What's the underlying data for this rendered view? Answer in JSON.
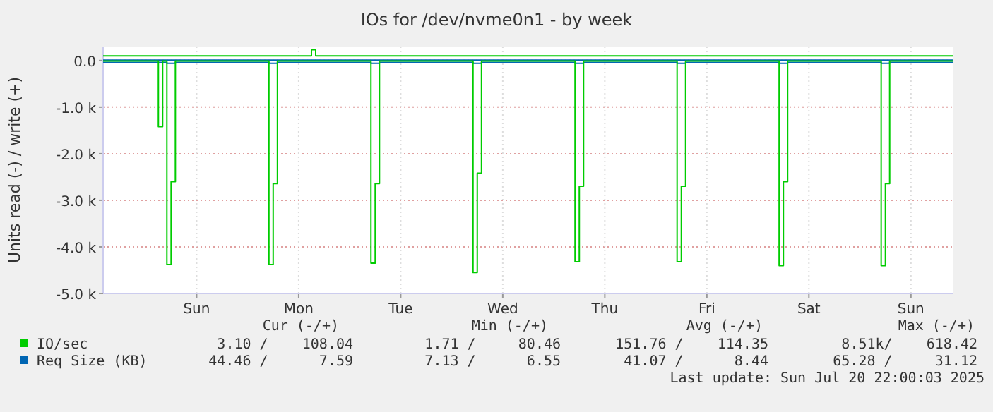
{
  "chart_data": {
    "type": "step",
    "title": "IOs for /dev/nvme0n1 - by week",
    "ylabel": "Units read (-) / write (+)",
    "categories": [
      null,
      null,
      null,
      null,
      null,
      null,
      null,
      null,
      null,
      null,
      null,
      null,
      null,
      null,
      null,
      null,
      null,
      null,
      null,
      null,
      null,
      null,
      "Sun",
      null,
      null,
      null,
      null,
      null,
      null,
      null,
      null,
      null,
      null,
      null,
      null,
      null,
      null,
      null,
      null,
      null,
      null,
      null,
      null,
      null,
      null,
      null,
      "Mon",
      null,
      null,
      null,
      null,
      null,
      null,
      null,
      null,
      null,
      null,
      null,
      null,
      null,
      null,
      null,
      null,
      null,
      null,
      null,
      null,
      null,
      null,
      null,
      "Tue",
      null,
      null,
      null,
      null,
      null,
      null,
      null,
      null,
      null,
      null,
      null,
      null,
      null,
      null,
      null,
      null,
      null,
      null,
      null,
      null,
      null,
      null,
      null,
      "Wed",
      null,
      null,
      null,
      null,
      null,
      null,
      null,
      null,
      null,
      null,
      null,
      null,
      null,
      null,
      null,
      null,
      null,
      null,
      null,
      null,
      null,
      null,
      null,
      "Thu",
      null,
      null,
      null,
      null,
      null,
      null,
      null,
      null,
      null,
      null,
      null,
      null,
      null,
      null,
      null,
      null,
      null,
      null,
      null,
      null,
      null,
      null,
      null,
      "Fri",
      null,
      null,
      null,
      null,
      null,
      null,
      null,
      null,
      null,
      null,
      null,
      null,
      null,
      null,
      null,
      null,
      null,
      null,
      null,
      null,
      null,
      null,
      null,
      "Sat",
      null,
      null,
      null,
      null,
      null,
      null,
      null,
      null,
      null,
      null,
      null,
      null,
      null,
      null,
      null,
      null,
      null,
      null,
      null,
      null,
      null,
      null,
      null,
      "Sun",
      null,
      null,
      null,
      null,
      null,
      null,
      null,
      null,
      null,
      null
    ],
    "ylim": [
      -5000,
      300
    ],
    "yticks": [
      {
        "value": -5000,
        "label": "-5.0 k"
      },
      {
        "value": -4000,
        "label": "-4.0 k"
      },
      {
        "value": -3000,
        "label": "-3.0 k"
      },
      {
        "value": -2000,
        "label": "-2.0 k"
      },
      {
        "value": -1000,
        "label": "-1.0 k"
      },
      {
        "value": 0,
        "label": "0.0"
      }
    ],
    "grid": true,
    "legend": "bottom",
    "series": [
      {
        "name": "IO/sec",
        "color": "#00cc00",
        "values": [
          -10,
          -10,
          -10,
          -10,
          -10,
          -10,
          -10,
          -10,
          -10,
          -10,
          -10,
          -10,
          -10,
          -1420,
          -10,
          -4380,
          -2600,
          -10,
          -10,
          -10,
          -10,
          -10,
          -10,
          -10,
          -10,
          -10,
          -10,
          -10,
          -10,
          -10,
          -10,
          -10,
          -10,
          -10,
          -10,
          -10,
          -10,
          -10,
          -10,
          -4380,
          -2640,
          -10,
          -10,
          -10,
          -10,
          -10,
          -10,
          -10,
          -10,
          -10,
          -10,
          -10,
          -10,
          -10,
          -10,
          -10,
          -10,
          -10,
          -10,
          -10,
          -10,
          -10,
          -10,
          -4350,
          -2640,
          -10,
          -10,
          -10,
          -10,
          -10,
          -10,
          -10,
          -10,
          -10,
          -10,
          -10,
          -10,
          -10,
          -10,
          -10,
          -10,
          -10,
          -10,
          -10,
          -10,
          -10,
          -10,
          -4550,
          -2420,
          -10,
          -10,
          -10,
          -10,
          -10,
          -10,
          -10,
          -10,
          -10,
          -10,
          -10,
          -10,
          -10,
          -10,
          -10,
          -10,
          -10,
          -10,
          -10,
          -10,
          -10,
          -10,
          -4320,
          -2700,
          -10,
          -10,
          -10,
          -10,
          -10,
          -10,
          -10,
          -10,
          -10,
          -10,
          -10,
          -10,
          -10,
          -10,
          -10,
          -10,
          -10,
          -10,
          -10,
          -10,
          -10,
          -10,
          -4320,
          -2700,
          -10,
          -10,
          -10,
          -10,
          -10,
          -10,
          -10,
          -10,
          -10,
          -10,
          -10,
          -10,
          -10,
          -10,
          -10,
          -10,
          -10,
          -10,
          -10,
          -10,
          -10,
          -10,
          -4400,
          -2600,
          -10,
          -10,
          -10,
          -10,
          -10,
          -10,
          -10,
          -10,
          -10,
          -10,
          -10,
          -10,
          -10,
          -10,
          -10,
          -10,
          -10,
          -10,
          -10,
          -10,
          -10,
          -10,
          -4400,
          -2640,
          -10,
          -10,
          -10,
          -10,
          -10,
          -10,
          -10,
          -10,
          -10,
          -10,
          -10,
          -10,
          -10,
          -10,
          -10,
          -10
        ]
      },
      {
        "color": "#00cc00",
        "values": [
          100,
          100,
          100,
          100,
          100,
          100,
          100,
          100,
          100,
          100,
          100,
          100,
          100,
          100,
          100,
          100,
          100,
          100,
          100,
          100,
          100,
          100,
          100,
          100,
          100,
          100,
          100,
          100,
          100,
          100,
          100,
          100,
          100,
          100,
          100,
          100,
          100,
          100,
          100,
          100,
          100,
          100,
          100,
          100,
          100,
          100,
          100,
          100,
          100,
          230,
          100,
          100,
          100,
          100,
          100,
          100,
          100,
          100,
          100,
          100,
          100,
          100,
          100,
          100,
          100,
          100,
          100,
          100,
          100,
          100,
          100,
          100,
          100,
          100,
          100,
          100,
          100,
          100,
          100,
          100,
          100,
          100,
          100,
          100,
          100,
          100,
          100,
          100,
          100,
          100,
          100,
          100,
          100,
          100,
          100,
          100,
          100,
          100,
          100,
          100,
          100,
          100,
          100,
          100,
          100,
          100,
          100,
          100,
          100,
          100,
          100,
          100,
          100,
          100,
          100,
          100,
          100,
          100,
          100,
          100,
          100,
          100,
          100,
          100,
          100,
          100,
          100,
          100,
          100,
          100,
          100,
          100,
          100,
          100,
          100,
          100,
          100,
          100,
          100,
          100,
          100,
          100,
          100,
          100,
          100,
          100,
          100,
          100,
          100,
          100,
          100,
          100,
          100,
          100,
          100,
          100,
          100,
          100,
          100,
          100,
          100,
          100,
          100,
          100,
          100,
          100,
          100,
          100,
          100,
          100,
          100,
          100,
          100,
          100,
          100,
          100,
          100,
          100,
          100,
          100,
          100,
          100,
          100,
          100,
          100,
          100,
          100,
          100,
          100,
          100,
          100,
          100,
          100,
          100,
          100,
          100,
          100,
          100,
          100,
          100,
          100
        ]
      },
      {
        "name": "Req Size (KB)",
        "color": "#0066b3",
        "values": [
          -40,
          -40,
          -40,
          -40,
          -40,
          -40,
          -40,
          -40,
          -40,
          -40,
          -40,
          -40,
          -40,
          -40,
          -40,
          -60,
          -60,
          -40,
          -40,
          -40,
          -40,
          -40,
          -40,
          -40,
          -40,
          -40,
          -40,
          -40,
          -40,
          -40,
          -40,
          -40,
          -40,
          -40,
          -40,
          -40,
          -40,
          -40,
          -40,
          -60,
          -60,
          -40,
          -40,
          -40,
          -40,
          -40,
          -40,
          -40,
          -40,
          -40,
          -40,
          -40,
          -40,
          -40,
          -40,
          -40,
          -40,
          -40,
          -40,
          -40,
          -40,
          -40,
          -40,
          -60,
          -60,
          -40,
          -40,
          -40,
          -40,
          -40,
          -40,
          -40,
          -40,
          -40,
          -40,
          -40,
          -40,
          -40,
          -40,
          -40,
          -40,
          -40,
          -40,
          -40,
          -40,
          -40,
          -40,
          -60,
          -60,
          -40,
          -40,
          -40,
          -40,
          -40,
          -40,
          -40,
          -40,
          -40,
          -40,
          -40,
          -40,
          -40,
          -40,
          -40,
          -40,
          -40,
          -40,
          -40,
          -40,
          -40,
          -40,
          -60,
          -60,
          -40,
          -40,
          -40,
          -40,
          -40,
          -40,
          -40,
          -40,
          -40,
          -40,
          -40,
          -40,
          -40,
          -40,
          -40,
          -40,
          -40,
          -40,
          -40,
          -40,
          -40,
          -40,
          -60,
          -60,
          -40,
          -40,
          -40,
          -40,
          -40,
          -40,
          -40,
          -40,
          -40,
          -40,
          -40,
          -40,
          -40,
          -40,
          -40,
          -40,
          -40,
          -40,
          -40,
          -40,
          -40,
          -40,
          -60,
          -60,
          -40,
          -40,
          -40,
          -40,
          -40,
          -40,
          -40,
          -40,
          -40,
          -40,
          -40,
          -40,
          -40,
          -40,
          -40,
          -40,
          -40,
          -40,
          -40,
          -40,
          -40,
          -40,
          -60,
          -60,
          -40,
          -40,
          -40,
          -40,
          -40,
          -40,
          -40,
          -40,
          -40,
          -40,
          -40,
          -40,
          -40,
          -40,
          -40,
          -40
        ]
      },
      {
        "color": "#0066b3",
        "values": [
          10,
          10,
          10,
          10,
          10,
          10,
          10,
          10,
          10,
          10,
          10,
          10,
          10,
          10,
          10,
          10,
          10,
          10,
          10,
          10,
          10,
          10,
          10,
          10,
          10,
          10,
          10,
          10,
          10,
          10,
          10,
          10,
          10,
          10,
          10,
          10,
          10,
          10,
          10,
          10,
          10,
          10,
          10,
          10,
          10,
          10,
          10,
          10,
          10,
          10,
          10,
          10,
          10,
          10,
          10,
          10,
          10,
          10,
          10,
          10,
          10,
          10,
          10,
          10,
          10,
          10,
          10,
          10,
          10,
          10,
          10,
          10,
          10,
          10,
          10,
          10,
          10,
          10,
          10,
          10,
          10,
          10,
          10,
          10,
          10,
          10,
          10,
          10,
          10,
          10,
          10,
          10,
          10,
          10,
          10,
          10,
          10,
          10,
          10,
          10,
          10,
          10,
          10,
          10,
          10,
          10,
          10,
          10,
          10,
          10,
          10,
          10,
          10,
          10,
          10,
          10,
          10,
          10,
          10,
          10,
          10,
          10,
          10,
          10,
          10,
          10,
          10,
          10,
          10,
          10,
          10,
          10,
          10,
          10,
          10,
          10,
          10,
          10,
          10,
          10,
          10,
          10,
          10,
          10,
          10,
          10,
          10,
          10,
          10,
          10,
          10,
          10,
          10,
          10,
          10,
          10,
          10,
          10,
          10,
          10,
          10,
          10,
          10,
          10,
          10,
          10,
          10,
          10,
          10,
          10,
          10,
          10,
          10,
          10,
          10,
          10,
          10,
          10,
          10,
          10,
          10,
          10,
          10,
          10,
          10,
          10,
          10,
          10,
          10,
          10,
          10,
          10,
          10,
          10,
          10,
          10,
          10,
          10,
          10,
          10,
          10
        ]
      }
    ],
    "annotations": [
      "Cur (-/+)",
      "Min (-/+)",
      "Avg (-/+)",
      "Max (-/+)",
      "3.10 /    108.04",
      "1.71 /     80.46",
      "151.76 /    114.35",
      "8.51k/    618.42",
      "44.46 /      7.59",
      "7.13 /      6.55",
      "41.07 /      8.44",
      "65.28 /     31.12",
      "Last update: Sun Jul 20 22:00:03 2025"
    ]
  }
}
